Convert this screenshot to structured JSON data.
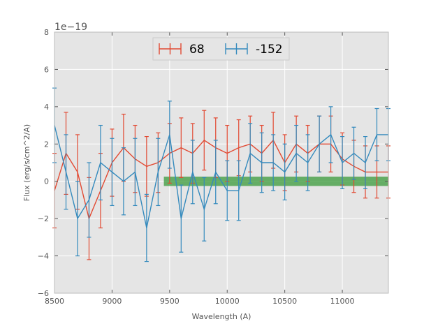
{
  "chart_data": {
    "type": "line",
    "title": "",
    "xlabel": "Wavelength (A)",
    "ylabel": "Flux (erg/s/cm^2/A)",
    "y_multiplier": "1e−19",
    "xlim": [
      8500,
      11400
    ],
    "ylim": [
      -6,
      8
    ],
    "xticks": [
      8500,
      9000,
      9500,
      10000,
      10500,
      11000
    ],
    "xtick_labels": [
      "8500",
      "9000",
      "9500",
      "10000",
      "10500",
      "11000"
    ],
    "yticks": [
      -6,
      -4,
      -2,
      0,
      2,
      4,
      6,
      8
    ],
    "ytick_labels": [
      "−6",
      "−4",
      "−2",
      "0",
      "2",
      "4",
      "6",
      "8"
    ],
    "grid": true,
    "legend_position": "top-center",
    "band": {
      "x": [
        9450,
        11400
      ],
      "y": [
        -0.25,
        0.25
      ],
      "color": "#3a9a3a"
    },
    "series": [
      {
        "name": "68",
        "color": "#e24a33",
        "x": [
          8500,
          8600,
          8700,
          8800,
          8900,
          9000,
          9100,
          9200,
          9300,
          9400,
          9500,
          9600,
          9700,
          9800,
          9900,
          10000,
          10100,
          10200,
          10300,
          10400,
          10500,
          10600,
          10700,
          10800,
          10900,
          11000,
          11100,
          11200,
          11300,
          11400
        ],
        "y": [
          -0.5,
          1.5,
          0.5,
          -2.0,
          -0.5,
          1.0,
          1.8,
          1.2,
          0.8,
          1.0,
          1.5,
          1.8,
          1.5,
          2.2,
          1.8,
          1.5,
          1.8,
          2.0,
          1.5,
          2.2,
          1.0,
          2.0,
          1.5,
          2.0,
          2.0,
          1.2,
          0.8,
          0.5,
          0.5,
          0.5
        ],
        "err": [
          2.0,
          2.2,
          2.0,
          2.2,
          2.0,
          1.8,
          1.8,
          1.8,
          1.6,
          1.6,
          1.6,
          1.6,
          1.6,
          1.6,
          1.6,
          1.5,
          1.5,
          1.5,
          1.5,
          1.5,
          1.5,
          1.5,
          1.5,
          1.5,
          1.5,
          1.4,
          1.4,
          1.4,
          1.4,
          1.4
        ]
      },
      {
        "name": "-152",
        "color": "#348abd",
        "x": [
          8500,
          8600,
          8700,
          8800,
          8900,
          9000,
          9100,
          9200,
          9300,
          9400,
          9500,
          9600,
          9700,
          9800,
          9900,
          10000,
          10100,
          10200,
          10300,
          10400,
          10500,
          10600,
          10700,
          10800,
          10900,
          11000,
          11100,
          11200,
          11300,
          11400
        ],
        "y": [
          3.0,
          0.5,
          -2.0,
          -1.0,
          1.0,
          0.5,
          0.0,
          0.5,
          -2.5,
          0.5,
          2.5,
          -2.0,
          0.5,
          -1.5,
          0.5,
          -0.5,
          -0.5,
          1.5,
          1.0,
          1.0,
          0.5,
          1.5,
          1.0,
          2.0,
          2.5,
          1.0,
          1.5,
          1.0,
          2.5,
          2.5
        ],
        "err": [
          2.0,
          2.0,
          2.0,
          2.0,
          2.0,
          1.8,
          1.8,
          1.8,
          1.8,
          1.8,
          1.8,
          1.8,
          1.7,
          1.7,
          1.7,
          1.6,
          1.6,
          1.6,
          1.6,
          1.5,
          1.5,
          1.5,
          1.5,
          1.5,
          1.5,
          1.4,
          1.4,
          1.4,
          1.4,
          1.4
        ]
      }
    ]
  }
}
